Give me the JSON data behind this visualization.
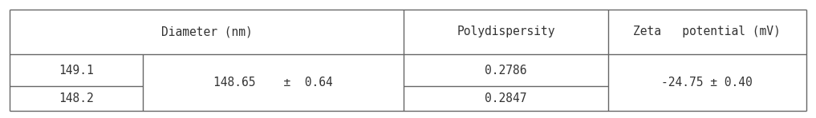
{
  "row1_col1": "149.1",
  "row2_col1": "148.2",
  "mean_text": "148.65    ±  0.64",
  "poly1": "0.2786",
  "poly2": "0.2847",
  "zeta": "-24.75 ± 0.40",
  "header_diam": "Diameter (nm)",
  "header_poly": "Polydispersity",
  "header_zeta": "Zeta   potential (mV)",
  "bg_color": "#ffffff",
  "border_color": "#666666",
  "text_color": "#333333",
  "font_size": 10.5,
  "lw": 1.0,
  "c0": 0.012,
  "c1": 0.175,
  "c2": 0.495,
  "c3": 0.745,
  "c4": 0.988,
  "r0": 0.92,
  "r1": 0.54,
  "r2": 0.27,
  "r3": 0.06
}
